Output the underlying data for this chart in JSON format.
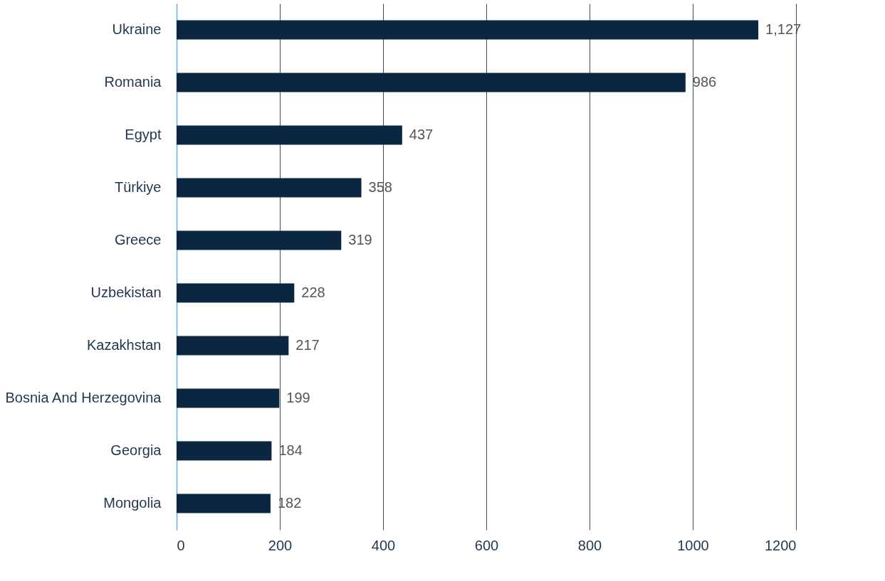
{
  "chart_data": {
    "type": "bar",
    "orientation": "horizontal",
    "categories": [
      "Ukraine",
      "Romania",
      "Egypt",
      "Türkiye",
      "Greece",
      "Uzbekistan",
      "Kazakhstan",
      "Bosnia And Herzegovina",
      "Georgia",
      "Mongolia"
    ],
    "values": [
      1127,
      986,
      437,
      358,
      319,
      228,
      217,
      199,
      184,
      182
    ],
    "value_labels": [
      "1,127",
      "986",
      "437",
      "358",
      "319",
      "228",
      "217",
      "199",
      "184",
      "182"
    ],
    "color": "#0b2640",
    "xlim": [
      0,
      1200
    ],
    "xticks": [
      0,
      200,
      400,
      600,
      800,
      1000,
      1200
    ],
    "grid": "x"
  }
}
